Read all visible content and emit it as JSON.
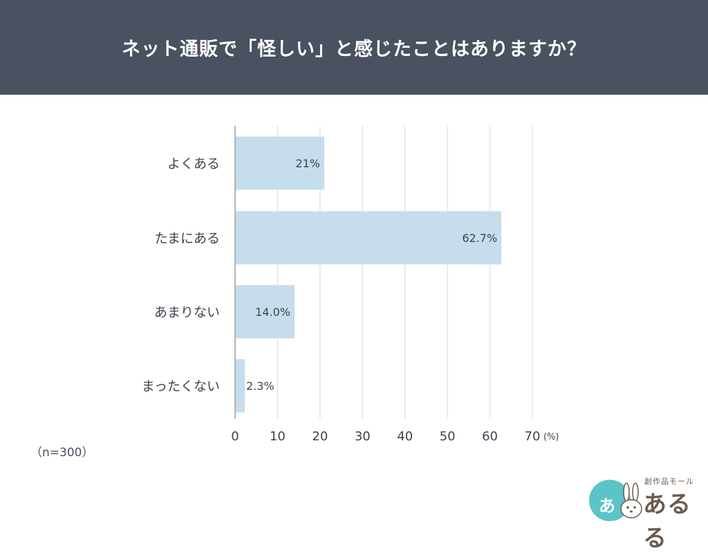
{
  "header": {
    "title": "ネット通販で「怪しい」と感じたことはありますか？"
  },
  "note": "（n=300）",
  "logo": {
    "sub": "創作品モール",
    "main": "あるる",
    "circle_char": "あ"
  },
  "colors": {
    "bar": "#c6ddec",
    "grid": "#d9dbdf",
    "axis": "#9a9ea6",
    "text": "#3d4450",
    "header_bg": "#4a5160"
  },
  "chart_data": {
    "type": "bar",
    "orientation": "horizontal",
    "categories": [
      "よくある",
      "たまにある",
      "あまりない",
      "まったくない"
    ],
    "values": [
      21,
      62.7,
      14.0,
      2.3
    ],
    "value_labels": [
      "21%",
      "62.7%",
      "14.0%",
      "2.3%"
    ],
    "xlim": [
      0,
      70
    ],
    "ticks": [
      0,
      10,
      20,
      30,
      40,
      50,
      60,
      70
    ],
    "tick_labels": [
      "0",
      "10",
      "20",
      "30",
      "40",
      "50",
      "60",
      "70"
    ],
    "unit_label": "(%)",
    "grid": true
  }
}
